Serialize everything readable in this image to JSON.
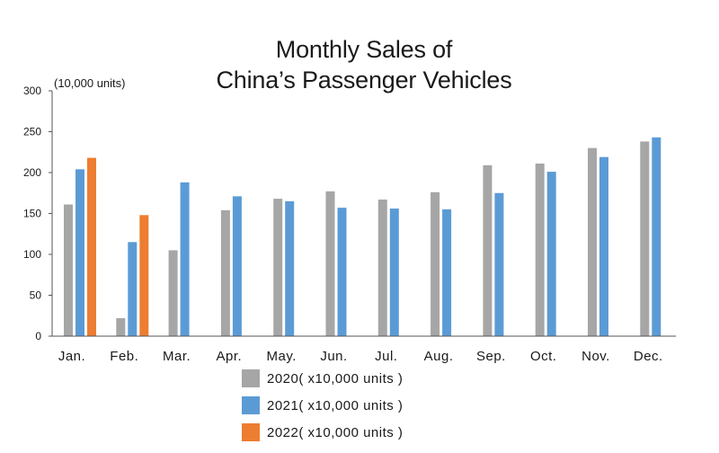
{
  "chart_data": {
    "type": "bar",
    "title_lines": [
      "Monthly Sales  of",
      "China’s Passenger Vehicles"
    ],
    "ylabel": "(10,000 units)",
    "xlabel": "",
    "ylim": [
      0,
      300
    ],
    "yticks": [
      0,
      50,
      100,
      150,
      200,
      250,
      300
    ],
    "grid": false,
    "legend_position": "bottom-center",
    "categories": [
      "Jan.",
      "Feb.",
      "Mar.",
      "Apr.",
      "May.",
      "Jun.",
      "Jul.",
      "Aug.",
      "Sep.",
      "Oct.",
      "Nov.",
      "Dec."
    ],
    "series": [
      {
        "name": "2020( x10,000 units )",
        "color": "#a6a6a6",
        "values": [
          161,
          22,
          105,
          154,
          168,
          177,
          167,
          176,
          209,
          211,
          230,
          238
        ]
      },
      {
        "name": "2021( x10,000 units )",
        "color": "#5b9bd5",
        "values": [
          204,
          115,
          188,
          171,
          165,
          157,
          156,
          155,
          175,
          201,
          219,
          243
        ]
      },
      {
        "name": "2022( x10,000 units )",
        "color": "#ed7d31",
        "values": [
          218,
          148,
          null,
          null,
          null,
          null,
          null,
          null,
          null,
          null,
          null,
          null
        ]
      }
    ]
  }
}
